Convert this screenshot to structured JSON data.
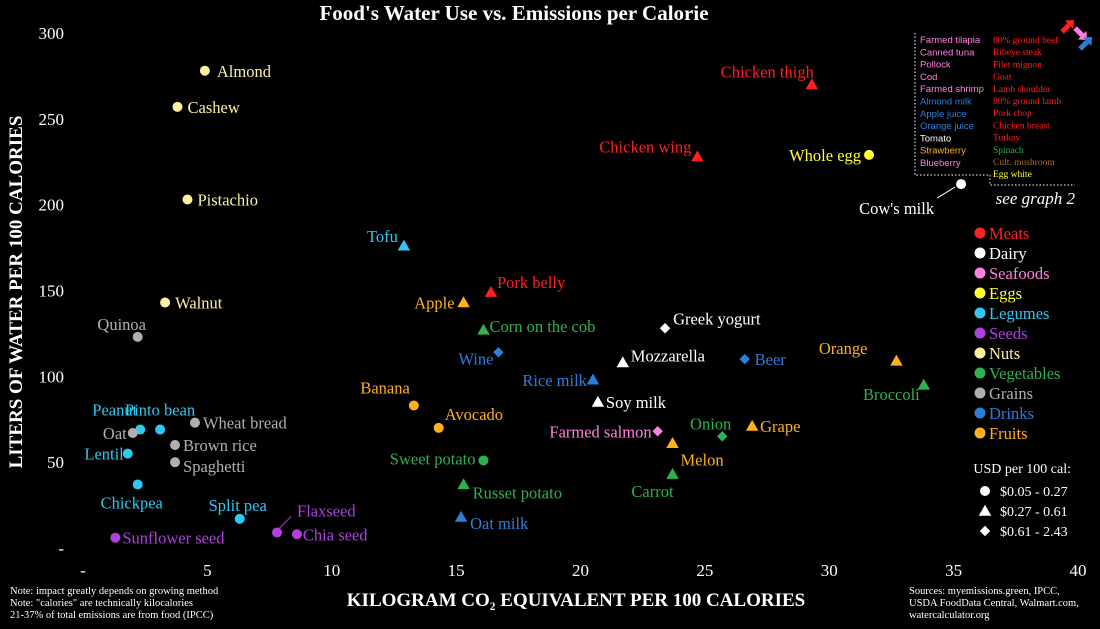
{
  "chart_data": {
    "type": "scatter",
    "title": "Food's Water Use vs. Emissions per Calorie",
    "xlabel": "KILOGRAM CO₂ EQUIVALENT PER 100 CALORIES",
    "ylabel": "LITERS OF WATER PER 100 CALORIES",
    "xlim": [
      0,
      40
    ],
    "ylim": [
      0,
      300
    ],
    "xticks": [
      "-",
      "5",
      "10",
      "15",
      "20",
      "25",
      "30",
      "35",
      "40"
    ],
    "yticks": [
      "-",
      "50",
      "100",
      "150",
      "200",
      "250",
      "300"
    ],
    "grid": false,
    "categories": [
      {
        "name": "Meats",
        "color": "#ff2020"
      },
      {
        "name": "Dairy",
        "color": "#ffffff"
      },
      {
        "name": "Seafoods",
        "color": "#ff80e0"
      },
      {
        "name": "Eggs",
        "color": "#ffff33"
      },
      {
        "name": "Legumes",
        "color": "#30c8f0"
      },
      {
        "name": "Seeds",
        "color": "#b040e0"
      },
      {
        "name": "Nuts",
        "color": "#fff0a0"
      },
      {
        "name": "Vegetables",
        "color": "#30b050"
      },
      {
        "name": "Grains",
        "color": "#b0b0b0"
      },
      {
        "name": "Drinks",
        "color": "#2a7fd8"
      },
      {
        "name": "Fruits",
        "color": "#ffb020"
      }
    ],
    "price_legend": {
      "title": "USD per 100 cal:",
      "items": [
        {
          "shape": "circle",
          "label": "$0.05 - 0.27"
        },
        {
          "shape": "triangle",
          "label": "$0.27 - 0.61"
        },
        {
          "shape": "diamond",
          "label": "$0.61 - 2.43"
        }
      ]
    },
    "points": [
      {
        "label": "Almond",
        "x": 4.9,
        "y": 278,
        "cat": "Nuts",
        "shape": "circle"
      },
      {
        "label": "Cashew",
        "x": 3.8,
        "y": 257,
        "cat": "Nuts",
        "shape": "circle"
      },
      {
        "label": "Pistachio",
        "x": 4.2,
        "y": 203,
        "cat": "Nuts",
        "shape": "circle"
      },
      {
        "label": "Walnut",
        "x": 3.3,
        "y": 143,
        "cat": "Nuts",
        "shape": "circle"
      },
      {
        "label": "Quinoa",
        "x": 2.2,
        "y": 123,
        "cat": "Grains",
        "shape": "circle"
      },
      {
        "label": "Pinto bean",
        "x": 3.1,
        "y": 69,
        "cat": "Legumes",
        "shape": "circle"
      },
      {
        "label": "Peanut",
        "x": 2.3,
        "y": 69,
        "cat": "Legumes",
        "shape": "circle"
      },
      {
        "label": "Oat",
        "x": 2.0,
        "y": 67,
        "cat": "Grains",
        "shape": "circle"
      },
      {
        "label": "Wheat bread",
        "x": 4.5,
        "y": 73,
        "cat": "Grains",
        "shape": "circle"
      },
      {
        "label": "Brown rice",
        "x": 3.7,
        "y": 60,
        "cat": "Grains",
        "shape": "circle"
      },
      {
        "label": "Lentil",
        "x": 1.8,
        "y": 55,
        "cat": "Legumes",
        "shape": "circle"
      },
      {
        "label": "Spaghetti",
        "x": 3.7,
        "y": 50,
        "cat": "Grains",
        "shape": "circle"
      },
      {
        "label": "Chickpea",
        "x": 2.2,
        "y": 37,
        "cat": "Legumes",
        "shape": "circle"
      },
      {
        "label": "Split pea",
        "x": 6.3,
        "y": 17,
        "cat": "Legumes",
        "shape": "circle"
      },
      {
        "label": "Flaxseed",
        "x": 7.8,
        "y": 9,
        "cat": "Seeds",
        "shape": "circle"
      },
      {
        "label": "Chia seed",
        "x": 8.6,
        "y": 8,
        "cat": "Seeds",
        "shape": "circle"
      },
      {
        "label": "Sunflower seed",
        "x": 1.3,
        "y": 6,
        "cat": "Seeds",
        "shape": "circle"
      },
      {
        "label": "Tofu",
        "x": 12.9,
        "y": 176,
        "cat": "Legumes",
        "shape": "triangle"
      },
      {
        "label": "Apple",
        "x": 15.3,
        "y": 143,
        "cat": "Fruits",
        "shape": "triangle"
      },
      {
        "label": "Pork belly",
        "x": 16.4,
        "y": 149,
        "cat": "Meats",
        "shape": "triangle"
      },
      {
        "label": "Corn on the cob",
        "x": 16.1,
        "y": 127,
        "cat": "Vegetables",
        "shape": "triangle"
      },
      {
        "label": "Wine",
        "x": 16.7,
        "y": 114,
        "cat": "Drinks",
        "shape": "diamond"
      },
      {
        "label": "Banana",
        "x": 13.3,
        "y": 83,
        "cat": "Fruits",
        "shape": "circle"
      },
      {
        "label": "Avocado",
        "x": 14.3,
        "y": 70,
        "cat": "Fruits",
        "shape": "circle"
      },
      {
        "label": "Sweet potato",
        "x": 16.1,
        "y": 51,
        "cat": "Vegetables",
        "shape": "circle"
      },
      {
        "label": "Russet potato",
        "x": 15.3,
        "y": 37,
        "cat": "Vegetables",
        "shape": "triangle"
      },
      {
        "label": "Oat milk",
        "x": 15.2,
        "y": 18,
        "cat": "Drinks",
        "shape": "triangle"
      },
      {
        "label": "Chicken thigh",
        "x": 29.3,
        "y": 270,
        "cat": "Meats",
        "shape": "triangle"
      },
      {
        "label": "Chicken wing",
        "x": 24.7,
        "y": 228,
        "cat": "Meats",
        "shape": "triangle"
      },
      {
        "label": "Whole egg",
        "x": 31.6,
        "y": 229,
        "cat": "Eggs",
        "shape": "circle"
      },
      {
        "label": "Cow's milk",
        "x": 35.3,
        "y": 212,
        "cat": "Dairy",
        "shape": "circle"
      },
      {
        "label": "Greek yogurt",
        "x": 23.4,
        "y": 128,
        "cat": "Dairy",
        "shape": "diamond"
      },
      {
        "label": "Mozzarella",
        "x": 21.7,
        "y": 108,
        "cat": "Dairy",
        "shape": "triangle"
      },
      {
        "label": "Rice milk",
        "x": 20.5,
        "y": 98,
        "cat": "Drinks",
        "shape": "triangle"
      },
      {
        "label": "Soy milk",
        "x": 20.7,
        "y": 85,
        "cat": "Dairy",
        "shape": "triangle"
      },
      {
        "label": "Beer",
        "x": 26.6,
        "y": 110,
        "cat": "Drinks",
        "shape": "diamond"
      },
      {
        "label": "Orange",
        "x": 32.7,
        "y": 109,
        "cat": "Fruits",
        "shape": "triangle"
      },
      {
        "label": "Broccoli",
        "x": 33.8,
        "y": 95,
        "cat": "Vegetables",
        "shape": "triangle"
      },
      {
        "label": "Grape",
        "x": 26.9,
        "y": 71,
        "cat": "Fruits",
        "shape": "triangle"
      },
      {
        "label": "Farmed salmon",
        "x": 23.1,
        "y": 68,
        "cat": "Seafoods",
        "shape": "diamond"
      },
      {
        "label": "Onion",
        "x": 25.7,
        "y": 65,
        "cat": "Vegetables",
        "shape": "diamond"
      },
      {
        "label": "Melon",
        "x": 23.7,
        "y": 61,
        "cat": "Fruits",
        "shape": "triangle"
      },
      {
        "label": "Carrot",
        "x": 23.7,
        "y": 43,
        "cat": "Vegetables",
        "shape": "triangle"
      }
    ],
    "inset": {
      "left_column": [
        {
          "text": "Farmed tilapia",
          "cat": "Seafoods"
        },
        {
          "text": "Canned tuna",
          "cat": "Seafoods"
        },
        {
          "text": "Pollock",
          "cat": "Seafoods"
        },
        {
          "text": "Cod",
          "cat": "Seafoods"
        },
        {
          "text": "Farmed shrimp",
          "cat": "Seafoods"
        },
        {
          "text": "Almond milk",
          "cat": "Drinks"
        },
        {
          "text": "Apple juice",
          "cat": "Drinks"
        },
        {
          "text": "Orange juice",
          "cat": "Drinks"
        },
        {
          "text": "Tomato",
          "cat": "Dairy"
        },
        {
          "text": "Strawberry",
          "cat": "Fruits"
        },
        {
          "text": "Blueberry",
          "cat": "Seafoods"
        }
      ],
      "right_column": [
        {
          "text": "80% ground beef",
          "cat": "Meats"
        },
        {
          "text": "Ribeye steak",
          "cat": "Meats"
        },
        {
          "text": "Filet mignon",
          "cat": "Meats"
        },
        {
          "text": "Goat",
          "cat": "Meats"
        },
        {
          "text": "Lamb shoulder",
          "cat": "Meats"
        },
        {
          "text": "80% ground lamb",
          "cat": "Meats"
        },
        {
          "text": "Pork chop",
          "cat": "Meats"
        },
        {
          "text": "Chicken breast",
          "cat": "Meats"
        },
        {
          "text": "Turkey",
          "cat": "Meats"
        },
        {
          "text": "Spinach",
          "cat": "Vegetables"
        },
        {
          "text": "Cult. mushroom",
          "cat": "Mushroom"
        },
        {
          "text": "Egg white",
          "cat": "Eggs"
        }
      ],
      "see_label": "see graph 2"
    },
    "notes": [
      "Note: impact greatly depends on growing method",
      "Note: \"calories\" are technically kilocalories",
      "21-37% of total emissions are from food (IPCC)"
    ],
    "sources": [
      "Sources: myemissions.green, IPCC,",
      "USDA FoodData Central, Walmart.com,",
      "watercalculator.org"
    ],
    "extra_colors": {
      "Mushroom": "#a86a30"
    }
  }
}
